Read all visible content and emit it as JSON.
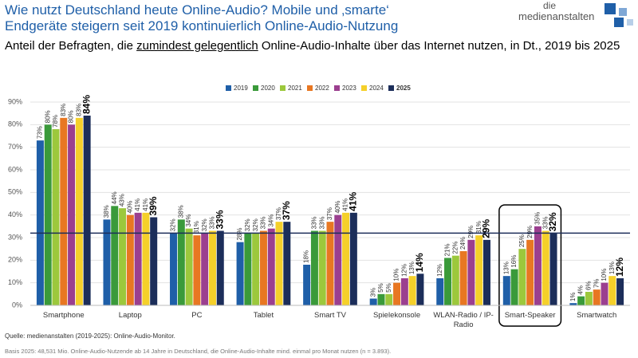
{
  "header": {
    "title_lines": [
      "Wie nutzt Deutschland heute Online-Audio? Mobile und ‚smarte‘",
      "Endgeräte steigern seit 2019 kontinuierlich Online-Audio-Nutzung"
    ],
    "logo_lines": [
      "die",
      "medienanstalten"
    ],
    "subtitle_parts": [
      "Anteil der Befragten, die ",
      "zumindest gelegentlich",
      " Online-Audio-Inhalte über das Internet nutzen, in Dt., 2019 bis 2025"
    ]
  },
  "chart_data": {
    "type": "bar",
    "categories": [
      "Smartphone",
      "Laptop",
      "PC",
      "Tablet",
      "Smart TV",
      "Spielekonsole",
      "WLAN-Radio / IP-Radio",
      "Smart-Speaker",
      "Smartwatch"
    ],
    "series": [
      {
        "name": "2019",
        "color": "#1f5fa8",
        "values": [
          73,
          38,
          32,
          28,
          18,
          3,
          12,
          13,
          1
        ],
        "value_labels": [
          "73%",
          "38%",
          "32%",
          "28%",
          "18%",
          "3%",
          "12%",
          "13%",
          "1%"
        ]
      },
      {
        "name": "2020",
        "color": "#3a9a3a",
        "values": [
          80,
          44,
          38,
          32,
          33,
          5,
          21,
          16,
          4
        ],
        "value_labels": [
          "80%",
          "44%",
          "38%",
          "32%",
          "33%",
          "5%",
          "21%",
          "16%",
          "4%"
        ]
      },
      {
        "name": "2021",
        "color": "#9cc83c",
        "values": [
          78,
          43,
          34,
          32,
          33,
          5,
          22,
          25,
          6
        ],
        "value_labels": [
          "78%",
          "43%",
          "34%",
          "32%",
          "33%",
          "5%",
          "22%",
          "25%",
          "6%"
        ]
      },
      {
        "name": "2022",
        "color": "#e87722",
        "values": [
          83,
          40,
          31,
          33,
          37,
          10,
          24,
          29,
          7
        ],
        "value_labels": [
          "83%",
          "40%",
          "31%",
          "33%",
          "37%",
          "10%",
          "24%",
          "29%",
          "7%"
        ]
      },
      {
        "name": "2023",
        "color": "#9b3f8f",
        "values": [
          80,
          41,
          32,
          34,
          40,
          12,
          29,
          35,
          10
        ],
        "value_labels": [
          "80%",
          "41%",
          "32%",
          "34%",
          "40%",
          "12%",
          "29%",
          "35%",
          "10%"
        ]
      },
      {
        "name": "2024",
        "color": "#f5d02a",
        "values": [
          83,
          41,
          33,
          37,
          41,
          13,
          31,
          33,
          13
        ],
        "value_labels": [
          "83%",
          "41%",
          "33%",
          "37%",
          "41%",
          "13%",
          "31%",
          "33%",
          "13%"
        ]
      },
      {
        "name": "2025",
        "color": "#1c2e5a",
        "values": [
          84,
          39,
          33,
          37,
          41,
          14,
          29,
          32,
          12
        ],
        "value_labels": [
          "84%",
          "39%",
          "33%",
          "37%",
          "41%",
          "14%",
          "29%",
          "32%",
          "12%"
        ]
      }
    ],
    "reference_line": 32,
    "reference_color": "#1c2e5a",
    "ylim": [
      0,
      90
    ],
    "yticks": [
      {
        "value": 0,
        "label": "0%"
      },
      {
        "value": 10,
        "label": "10%"
      },
      {
        "value": 20,
        "label": "20%"
      },
      {
        "value": 30,
        "label": "30%"
      },
      {
        "value": 40,
        "label": "40%"
      },
      {
        "value": 50,
        "label": "50%"
      },
      {
        "value": 60,
        "label": "60%"
      },
      {
        "value": 70,
        "label": "70%"
      },
      {
        "value": 80,
        "label": "80%"
      },
      {
        "value": 90,
        "label": "90%"
      }
    ],
    "grid": true
  },
  "footer": {
    "source": "Quelle: medienanstalten (2019-2025): Online-Audio-Monitor.",
    "note": "Basis 2025: 48,531 Mio. Online-Audio-Nutzende ab 14 Jahre in Deutschland, die Online-Audio-Inhalte mind. einmal pro Monat nutzen (n = 3.893)."
  }
}
